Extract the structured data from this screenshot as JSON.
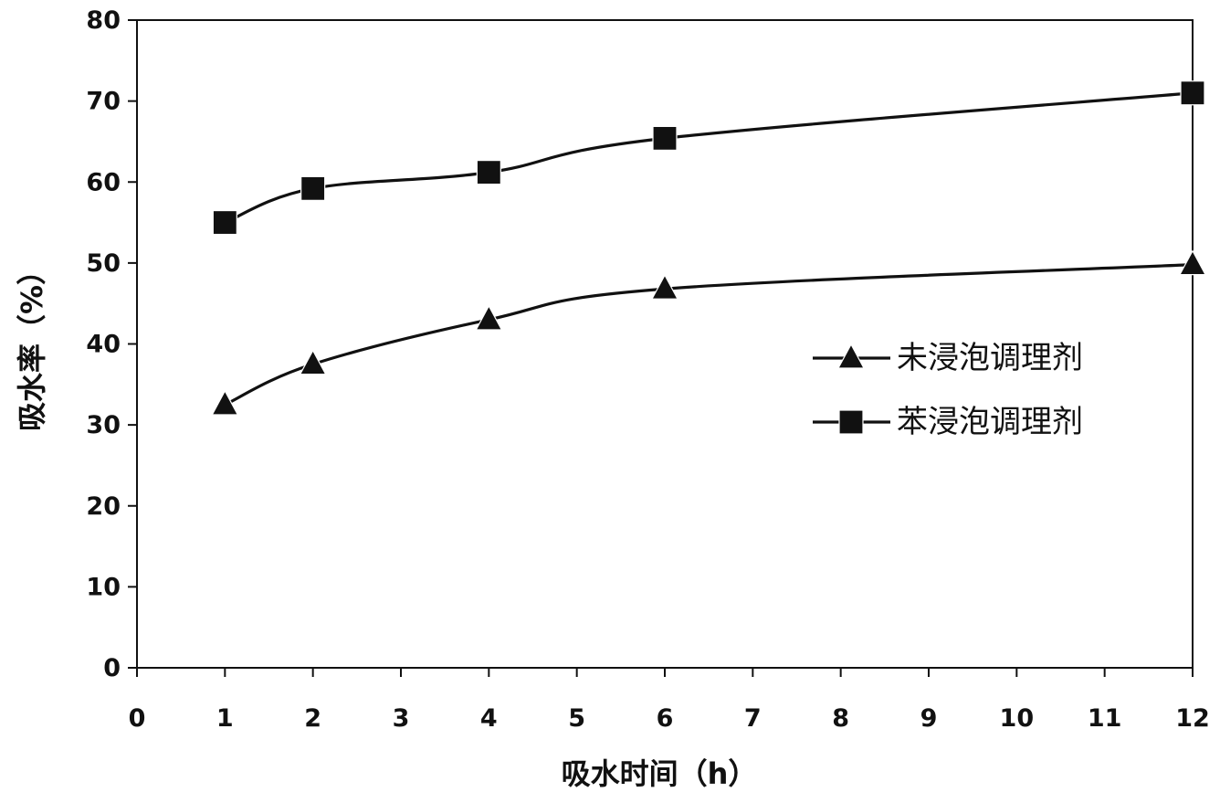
{
  "chart_data": {
    "type": "line",
    "title": "",
    "xlabel": "吸水时间（h）",
    "ylabel": "吸水率（%）",
    "xlim": [
      0,
      12
    ],
    "ylim": [
      0,
      80
    ],
    "xticks": [
      0,
      1,
      2,
      3,
      4,
      5,
      6,
      7,
      8,
      9,
      10,
      11,
      12
    ],
    "yticks": [
      0,
      10,
      20,
      30,
      40,
      50,
      60,
      70,
      80
    ],
    "grid": false,
    "legend_position": "right",
    "series": [
      {
        "name": "未浸泡调理剂",
        "marker": "triangle",
        "color": "#111111",
        "x": [
          1,
          2,
          4,
          6,
          12
        ],
        "y": [
          32.5,
          37.5,
          43,
          46.8,
          49.8
        ]
      },
      {
        "name": "苯浸泡调理剂",
        "marker": "square",
        "color": "#111111",
        "x": [
          1,
          2,
          4,
          6,
          12
        ],
        "y": [
          55,
          59.2,
          61.2,
          65.4,
          71
        ]
      }
    ]
  }
}
